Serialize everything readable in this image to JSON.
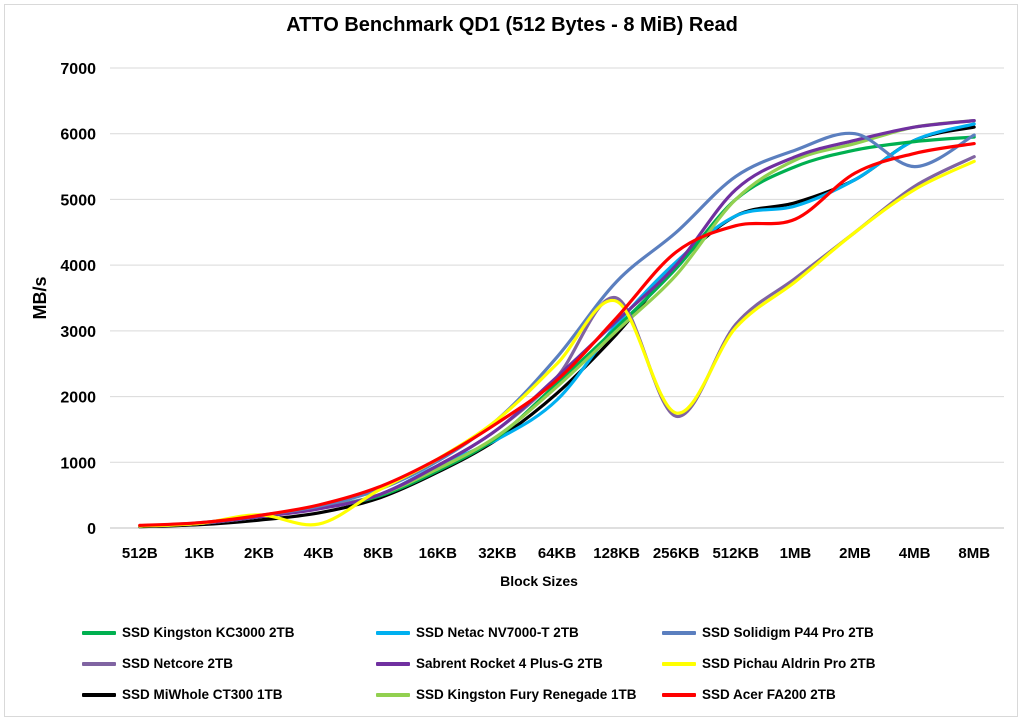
{
  "chart_data": {
    "type": "line",
    "title": "ATTO Benchmark QD1 (512 Bytes - 8 MiB) Read",
    "xlabel": "Block Sizes",
    "ylabel": "MB/s",
    "ylim": [
      0,
      7000
    ],
    "yticks": [
      0,
      1000,
      2000,
      3000,
      4000,
      5000,
      6000,
      7000
    ],
    "grid": "horizontal",
    "legend_position": "bottom",
    "categories": [
      "512B",
      "1KB",
      "2KB",
      "4KB",
      "8KB",
      "16KB",
      "32KB",
      "64KB",
      "128KB",
      "256KB",
      "512KB",
      "1MB",
      "2MB",
      "4MB",
      "8MB"
    ],
    "series": [
      {
        "name": "SSD Kingston KC3000 2TB",
        "color": "#00b050",
        "values": [
          30,
          70,
          170,
          300,
          480,
          870,
          1380,
          2200,
          3050,
          3950,
          5000,
          5500,
          5750,
          5880,
          5950
        ]
      },
      {
        "name": "SSD Netac NV7000-T 2TB",
        "color": "#00b0f0",
        "values": [
          30,
          70,
          180,
          320,
          500,
          950,
          1350,
          1950,
          3100,
          4050,
          4750,
          4900,
          5300,
          5900,
          6150
        ]
      },
      {
        "name": "SSD Solidigm P44 Pro 2TB",
        "color": "#5b7fbf",
        "values": [
          30,
          80,
          190,
          330,
          580,
          1020,
          1650,
          2600,
          3750,
          4500,
          5350,
          5750,
          6000,
          5500,
          5980
        ]
      },
      {
        "name": "SSD Netcore 2TB",
        "color": "#8064a2",
        "values": [
          30,
          70,
          170,
          300,
          500,
          950,
          1500,
          2300,
          3500,
          1700,
          3100,
          3800,
          4500,
          5200,
          5650
        ]
      },
      {
        "name": "Sabrent Rocket 4 Plus-G 2TB",
        "color": "#7030a0",
        "values": [
          30,
          70,
          170,
          290,
          500,
          950,
          1500,
          2300,
          3150,
          4000,
          5150,
          5650,
          5900,
          6100,
          6200
        ]
      },
      {
        "name": "SSD Pichau Aldrin Pro 2TB",
        "color": "#ffff00",
        "values": [
          30,
          70,
          200,
          60,
          570,
          1050,
          1650,
          2500,
          3450,
          1750,
          3050,
          3750,
          4500,
          5150,
          5580
        ]
      },
      {
        "name": "SSD MiWhole CT300 1TB",
        "color": "#000000",
        "values": [
          20,
          50,
          120,
          230,
          450,
          850,
          1350,
          2050,
          2950,
          4000,
          4750,
          4950,
          5300,
          5900,
          6100
        ]
      },
      {
        "name": "SSD Kingston Fury Renegade 1TB",
        "color": "#92d050",
        "values": [
          30,
          70,
          170,
          300,
          500,
          900,
          1400,
          2150,
          3000,
          3850,
          5000,
          5600,
          5850,
          6100,
          6200
        ]
      },
      {
        "name": "SSD Acer FA200 2TB",
        "color": "#ff0000",
        "values": [
          40,
          80,
          190,
          350,
          620,
          1050,
          1600,
          2250,
          3200,
          4200,
          4600,
          4700,
          5400,
          5700,
          5850
        ]
      }
    ]
  }
}
